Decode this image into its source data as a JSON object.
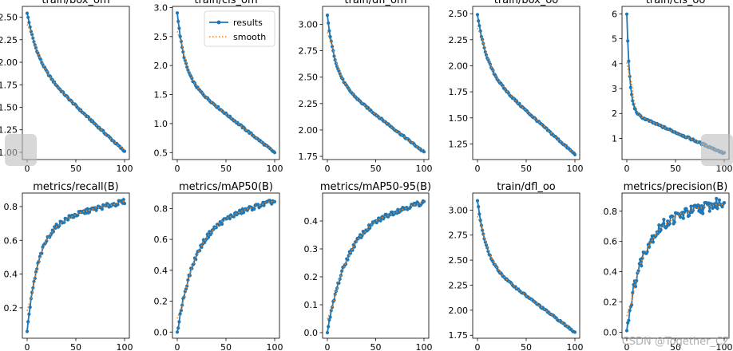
{
  "figure": {
    "watermark": "CSDN @Together_CZ",
    "colors": {
      "results": "#1f77b4",
      "smooth": "#ff7f0e"
    }
  },
  "legend": {
    "results_label": "results",
    "smooth_label": "smooth",
    "panel": "train/cls_om"
  },
  "chart_data": [
    {
      "type": "line",
      "title": "train/box_om",
      "x": [
        0,
        100
      ],
      "xticks": [
        "0",
        "50",
        "100"
      ],
      "yticks": [
        "1.00",
        "1.25",
        "1.50",
        "1.75",
        "2.00",
        "2.25",
        "2.50"
      ],
      "ylim": [
        0.92,
        2.62
      ],
      "curve": "decay",
      "start": 2.55,
      "end": 1.01,
      "steep": 0.35,
      "knee": 0.4
    },
    {
      "type": "line",
      "title": "train/cls_om",
      "x": [
        0,
        100
      ],
      "xticks": [
        "0",
        "50",
        "100"
      ],
      "yticks": [
        "0.5",
        "1.0",
        "1.5",
        "2.0",
        "2.5",
        "3.0"
      ],
      "ylim": [
        0.38,
        3.02
      ],
      "curve": "decay",
      "start": 2.92,
      "end": 0.5,
      "steep": 0.45,
      "knee": 0.25
    },
    {
      "type": "line",
      "title": "train/dfl_om",
      "x": [
        0,
        100
      ],
      "xticks": [
        "0",
        "50",
        "100"
      ],
      "yticks": [
        "1.75",
        "2.00",
        "2.25",
        "2.50",
        "2.75",
        "3.00"
      ],
      "ylim": [
        1.72,
        3.17
      ],
      "curve": "decay",
      "start": 3.08,
      "end": 1.79,
      "steep": 0.45,
      "knee": 0.3
    },
    {
      "type": "line",
      "title": "train/box_oo",
      "x": [
        0,
        100
      ],
      "xticks": [
        "0",
        "50",
        "100"
      ],
      "yticks": [
        "1.25",
        "1.50",
        "1.75",
        "2.00",
        "2.25",
        "2.50"
      ],
      "ylim": [
        1.1,
        2.57
      ],
      "curve": "decay",
      "start": 2.49,
      "end": 1.15,
      "steep": 0.38,
      "knee": 0.35
    },
    {
      "type": "line",
      "title": "train/cls_oo",
      "x": [
        0,
        100
      ],
      "xticks": [
        "0",
        "50",
        "100"
      ],
      "yticks": [
        "1",
        "2",
        "3",
        "4",
        "5",
        "6"
      ],
      "ylim": [
        0.15,
        6.3
      ],
      "curve": "decay",
      "start": 6.02,
      "end": 0.4,
      "steep": 0.7,
      "knee": 0.08
    },
    {
      "type": "line",
      "title": "metrics/recall(B)",
      "x": [
        0,
        100
      ],
      "xticks": [
        "0",
        "50",
        "100"
      ],
      "yticks": [
        "0.2",
        "0.4",
        "0.6",
        "0.8"
      ],
      "ylim": [
        0.02,
        0.88
      ],
      "curve": "rise",
      "start": 0.06,
      "end": 0.83,
      "steep": 0.5,
      "knee": 0.12
    },
    {
      "type": "line",
      "title": "metrics/mAP50(B)",
      "x": [
        0,
        100
      ],
      "xticks": [
        "0",
        "50",
        "100"
      ],
      "yticks": [
        "0.0",
        "0.2",
        "0.4",
        "0.6",
        "0.8"
      ],
      "ylim": [
        -0.04,
        0.9
      ],
      "curve": "rise",
      "start": 0.0,
      "end": 0.85,
      "steep": 0.55,
      "knee": 0.18
    },
    {
      "type": "line",
      "title": "metrics/mAP50-95(B)",
      "x": [
        0,
        100
      ],
      "xticks": [
        "0",
        "50",
        "100"
      ],
      "yticks": [
        "0.0",
        "0.1",
        "0.2",
        "0.3",
        "0.4"
      ],
      "ylim": [
        -0.02,
        0.5
      ],
      "curve": "rise",
      "start": 0.0,
      "end": 0.47,
      "steep": 0.48,
      "knee": 0.2
    },
    {
      "type": "line",
      "title": "train/dfl_oo",
      "x": [
        0,
        100
      ],
      "xticks": [
        "0",
        "50",
        "100"
      ],
      "yticks": [
        "1.75",
        "2.00",
        "2.25",
        "2.50",
        "2.75",
        "3.00"
      ],
      "ylim": [
        1.72,
        3.17
      ],
      "curve": "decay",
      "start": 3.1,
      "end": 1.78,
      "steep": 0.45,
      "knee": 0.3
    },
    {
      "type": "line",
      "title": "metrics/precision(B)",
      "x": [
        0,
        100
      ],
      "xticks": [
        "0",
        "50",
        "100"
      ],
      "yticks": [
        "0.0",
        "0.2",
        "0.4",
        "0.6",
        "0.8"
      ],
      "ylim": [
        -0.04,
        0.92
      ],
      "curve": "rise",
      "start": 0.01,
      "end": 0.86,
      "steep": 0.52,
      "knee": 0.15
    }
  ]
}
